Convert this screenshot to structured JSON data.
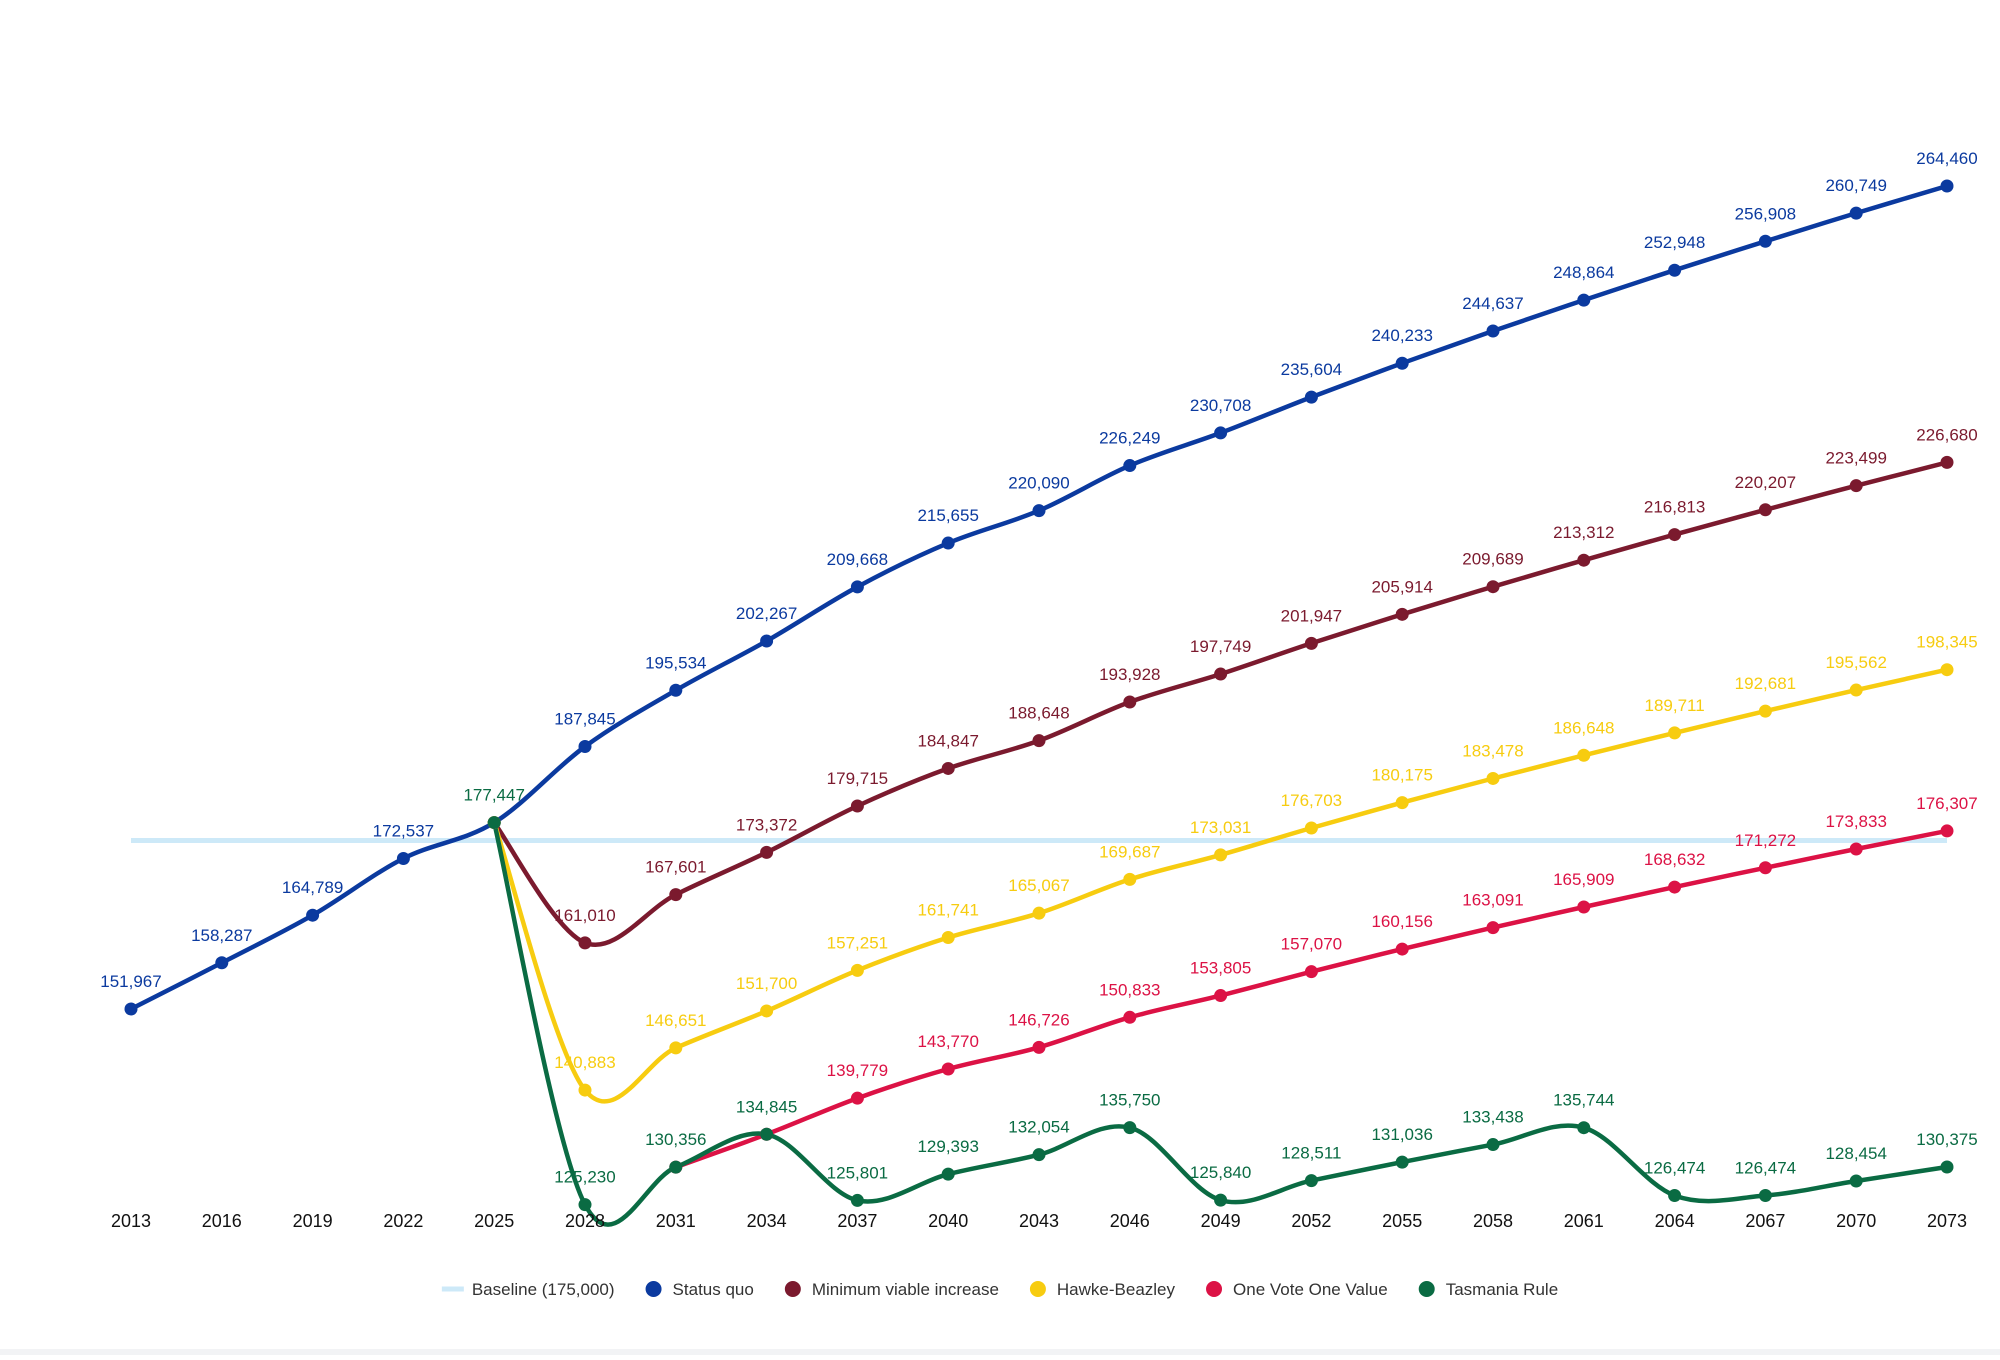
{
  "chart_data": {
    "type": "line",
    "title": "",
    "xlabel": "",
    "ylabel": "",
    "ylim": [
      115000,
      285000
    ],
    "grid": false,
    "legend_position": "bottom-center",
    "categories": [
      "2013",
      "2016",
      "2019",
      "2022",
      "2025",
      "2028",
      "2031",
      "2034",
      "2037",
      "2040",
      "2043",
      "2046",
      "2049",
      "2052",
      "2055",
      "2058",
      "2061",
      "2064",
      "2067",
      "2070",
      "2073"
    ],
    "baseline": {
      "name": "Baseline (175,000)",
      "value": 175000,
      "color": "#cde9f8"
    },
    "series": [
      {
        "name": "Status quo",
        "color": "#0b3a9f",
        "x": [
          "2013",
          "2016",
          "2019",
          "2022",
          "2025",
          "2028",
          "2031",
          "2034",
          "2037",
          "2040",
          "2043",
          "2046",
          "2049",
          "2052",
          "2055",
          "2058",
          "2061",
          "2064",
          "2067",
          "2070",
          "2073"
        ],
        "values": [
          151967,
          158287,
          164789,
          172537,
          177447,
          187845,
          195534,
          202267,
          209668,
          215655,
          220090,
          226249,
          230708,
          235604,
          240233,
          244637,
          248864,
          252948,
          256908,
          260749,
          264460
        ],
        "labels": [
          "151,967",
          "158,287",
          "164,789",
          "172,537",
          "",
          "187,845",
          "195,534",
          "202,267",
          "209,668",
          "215,655",
          "220,090",
          "226,249",
          "230,708",
          "235,604",
          "240,233",
          "244,637",
          "248,864",
          "252,948",
          "256,908",
          "260,749",
          "264,460"
        ]
      },
      {
        "name": "Minimum viable increase",
        "color": "#7b1a2e",
        "x": [
          "2025",
          "2028",
          "2031",
          "2034",
          "2037",
          "2040",
          "2043",
          "2046",
          "2049",
          "2052",
          "2055",
          "2058",
          "2061",
          "2064",
          "2067",
          "2070",
          "2073"
        ],
        "values": [
          177447,
          161010,
          167601,
          173372,
          179715,
          184847,
          188648,
          193928,
          197749,
          201947,
          205914,
          209689,
          213312,
          216813,
          220207,
          223499,
          226680
        ],
        "labels": [
          "",
          "161,010",
          "167,601",
          "173,372",
          "179,715",
          "184,847",
          "188,648",
          "193,928",
          "197,749",
          "201,947",
          "205,914",
          "209,689",
          "213,312",
          "216,813",
          "220,207",
          "223,499",
          "226,680"
        ]
      },
      {
        "name": "Hawke-Beazley",
        "color": "#f7cc10",
        "x": [
          "2025",
          "2028",
          "2031",
          "2034",
          "2037",
          "2040",
          "2043",
          "2046",
          "2049",
          "2052",
          "2055",
          "2058",
          "2061",
          "2064",
          "2067",
          "2070",
          "2073"
        ],
        "values": [
          177447,
          140883,
          146651,
          151700,
          157251,
          161741,
          165067,
          169687,
          173031,
          176703,
          180175,
          183478,
          186648,
          189711,
          192681,
          195562,
          198345
        ],
        "labels": [
          "",
          "140,883",
          "146,651",
          "151,700",
          "157,251",
          "161,741",
          "165,067",
          "169,687",
          "173,031",
          "176,703",
          "180,175",
          "183,478",
          "186,648",
          "189,711",
          "192,681",
          "195,562",
          "198,345"
        ]
      },
      {
        "name": "One Vote One Value",
        "color": "#dc1245",
        "x": [
          "2031",
          "2034",
          "2037",
          "2040",
          "2043",
          "2046",
          "2049",
          "2052",
          "2055",
          "2058",
          "2061",
          "2064",
          "2067",
          "2070",
          "2073"
        ],
        "values": [
          130356,
          134845,
          139779,
          143770,
          146726,
          150833,
          153805,
          157070,
          160156,
          163091,
          165909,
          168632,
          171272,
          173833,
          176307
        ],
        "labels": [
          "",
          "",
          "139,779",
          "143,770",
          "146,726",
          "150,833",
          "153,805",
          "157,070",
          "160,156",
          "163,091",
          "165,909",
          "168,632",
          "171,272",
          "173,833",
          "176,307"
        ]
      },
      {
        "name": "Tasmania Rule",
        "color": "#0a6b43",
        "x": [
          "2025",
          "2028",
          "2031",
          "2034",
          "2037",
          "2040",
          "2043",
          "2046",
          "2049",
          "2052",
          "2055",
          "2058",
          "2061",
          "2064",
          "2067",
          "2070",
          "2073"
        ],
        "values": [
          177447,
          125230,
          130356,
          134845,
          125801,
          129393,
          132054,
          135750,
          125840,
          128511,
          131036,
          133438,
          135744,
          126474,
          126474,
          128454,
          130375
        ],
        "labels": [
          "177,447",
          "125,230",
          "130,356",
          "134,845",
          "125,801",
          "129,393",
          "132,054",
          "135,750",
          "125,840",
          "128,511",
          "131,036",
          "133,438",
          "135,744",
          "126,474",
          "126,474",
          "128,454",
          "130,375"
        ]
      }
    ]
  }
}
